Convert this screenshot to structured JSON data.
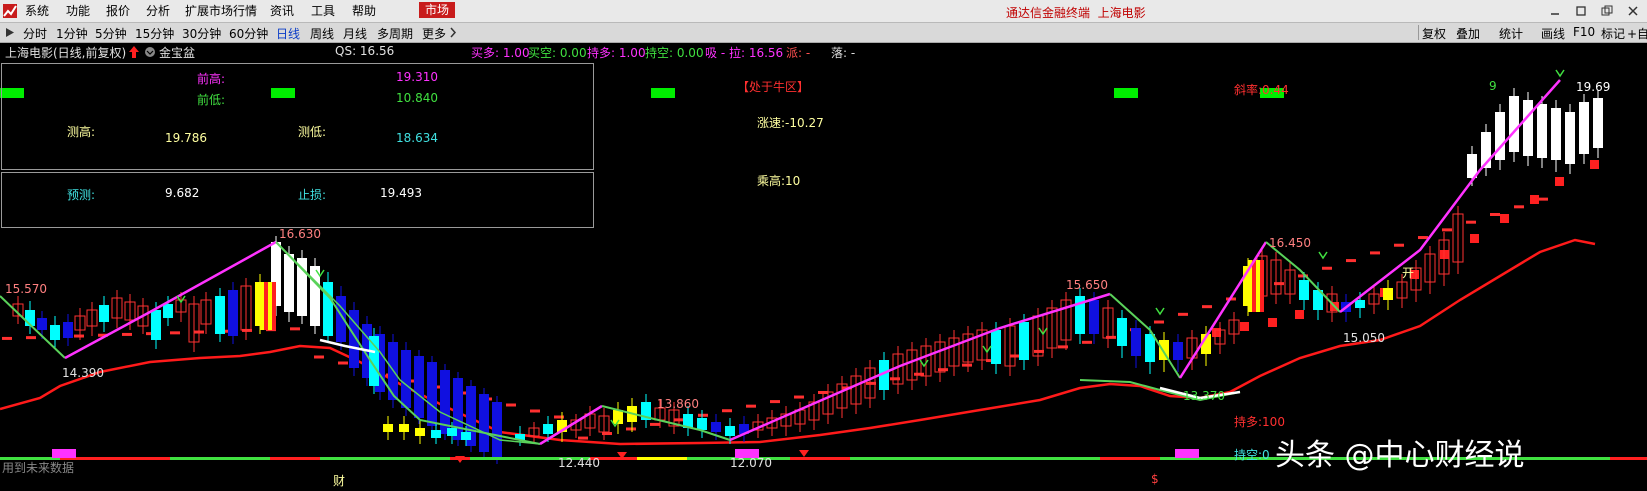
{
  "menu": {
    "items": [
      "系统",
      "功能",
      "报价",
      "分析",
      "扩展市场行情",
      "资讯",
      "工具",
      "帮助"
    ],
    "market_label": "市场",
    "title": "通达信金融终端",
    "stock_name": "上海电影"
  },
  "periods": [
    "分时",
    "1分钟",
    "5分钟",
    "15分钟",
    "30分钟",
    "60分钟",
    "日线",
    "周线",
    "月线",
    "多周期",
    "更多"
  ],
  "active_period": "日线",
  "toolbar_right": [
    "复权",
    "叠加",
    "统计",
    "画线",
    "F10",
    "标记",
    "+自"
  ],
  "info_bar": {
    "stock": "上海电影(日线,前复权)",
    "indicator": "金宝盆",
    "qs": "QS: 16.56",
    "buy_more": "买多: 1.00",
    "buy_empty": "买空: 0.00",
    "hold_more": "持多: 1.00",
    "hold_empty": "持空: 0.00",
    "suck_pull": "吸 - 拉: 16.56",
    "pai": "派: -",
    "luo": "落: -"
  },
  "panel": {
    "prev_high_label": "前高:",
    "prev_high_value": "19.310",
    "prev_low_label": "前低:",
    "prev_low_value": "10.840",
    "meas_high_label": "测高:",
    "meas_high_value": "19.786",
    "meas_low_label": "测低:",
    "meas_low_value": "18.634",
    "forecast_label": "预测:",
    "forecast_value": "9.682",
    "stop_label": "止损:",
    "stop_value": "19.493"
  },
  "annotations": {
    "zone": "【处于牛区】",
    "rise_speed": "涨速:-10.27",
    "take_high": "乘高:10",
    "slope": "斜率:0.44",
    "hold_more_bottom": "持多:100",
    "hold_empty_bottom": "持空:0",
    "future_data": "用到未来数据",
    "cai": "财",
    "s_mark": "$",
    "nine": "9",
    "kai": "开"
  },
  "price_labels": [
    "15.570",
    "16.630",
    "14.390",
    "13.860",
    "12.440",
    "12.070",
    "15.650",
    "15.050",
    "13.370",
    "16.450",
    "19.69"
  ],
  "watermark": "头条 @中心财经说",
  "colors": {
    "up": "#ff3232",
    "down": "#00ffff",
    "bear": "#1010e0",
    "pink": "#ff32ff",
    "green": "#5ad25a",
    "yellow": "#ffff00",
    "red": "#ff1a1a"
  }
}
